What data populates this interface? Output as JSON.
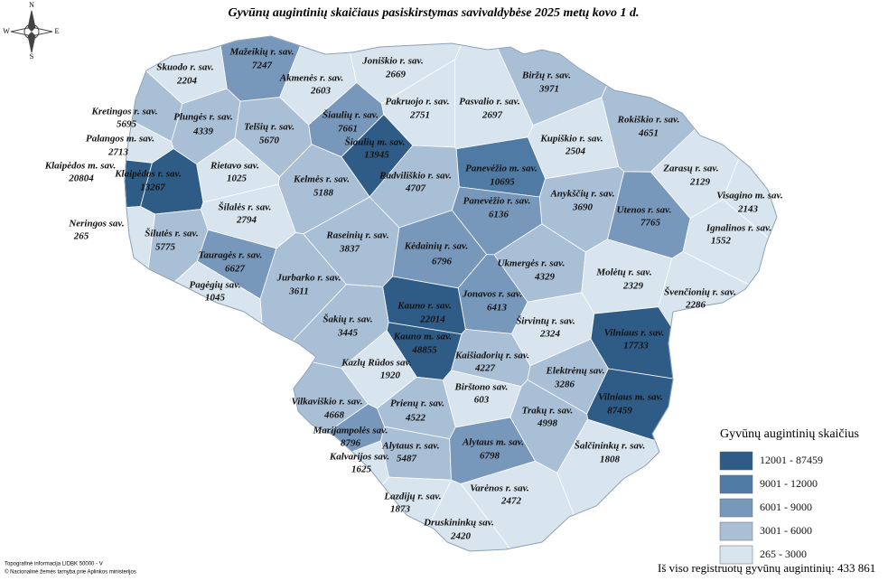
{
  "title": "Gyvūnų augintinių skaičiaus pasiskirstymas savivaldybėse 2025 metų kovo 1 d.",
  "compass": {
    "n": "N",
    "s": "S",
    "w": "W",
    "e": "E"
  },
  "regions": [
    {
      "name": "Mažeikių r. sav.",
      "value": 7247
    },
    {
      "name": "Skuodo r. sav.",
      "value": 2204
    },
    {
      "name": "Akmenės r. sav.",
      "value": 2603
    },
    {
      "name": "Joniškio r. sav.",
      "value": 2669
    },
    {
      "name": "Biržų r. sav.",
      "value": 3971
    },
    {
      "name": "Kretingos r. sav.",
      "value": 5695
    },
    {
      "name": "Plungės r. sav.",
      "value": 4339
    },
    {
      "name": "Telšių r. sav.",
      "value": 5670
    },
    {
      "name": "Šiaulių r. sav.",
      "value": 7661
    },
    {
      "name": "Pakruojo r. sav.",
      "value": 2751
    },
    {
      "name": "Pasvalio r. sav.",
      "value": 2697
    },
    {
      "name": "Rokiškio r. sav.",
      "value": 4651
    },
    {
      "name": "Palangos m. sav.",
      "value": 2713
    },
    {
      "name": "Šiaulių m. sav.",
      "value": 13945
    },
    {
      "name": "Kupiškio r. sav.",
      "value": 2504
    },
    {
      "name": "Klaipėdos m. sav.",
      "value": 20804
    },
    {
      "name": "Klaipėdos r. sav.",
      "value": 13267
    },
    {
      "name": "Rietavo sav.",
      "value": 1025
    },
    {
      "name": "Radviliškio r. sav.",
      "value": 4707
    },
    {
      "name": "Panevėžio m. sav.",
      "value": 10695
    },
    {
      "name": "Zarasų r. sav.",
      "value": 2129
    },
    {
      "name": "Kelmės r. sav.",
      "value": 5188
    },
    {
      "name": "Anykščių r. sav.",
      "value": 3690
    },
    {
      "name": "Visagino m. sav.",
      "value": 2143
    },
    {
      "name": "Panevėžio r. sav.",
      "value": 6136
    },
    {
      "name": "Šilalės r. sav.",
      "value": 2794
    },
    {
      "name": "Utenos r. sav.",
      "value": 7765
    },
    {
      "name": "Neringos sav.",
      "value": 265
    },
    {
      "name": "Ignalinos r. sav.",
      "value": 1552
    },
    {
      "name": "Šilutės r. sav.",
      "value": 5775
    },
    {
      "name": "Raseinių r. sav.",
      "value": 3837
    },
    {
      "name": "Kėdainių r. sav.",
      "value": 6796
    },
    {
      "name": "Tauragės r. sav.",
      "value": 6627
    },
    {
      "name": "Ukmergės r. sav.",
      "value": 4329
    },
    {
      "name": "Molėtų r. sav.",
      "value": 2329
    },
    {
      "name": "Pagėgių sav.",
      "value": 1045
    },
    {
      "name": "Jurbarko r. sav.",
      "value": 3611
    },
    {
      "name": "Jonavos r. sav.",
      "value": 6413
    },
    {
      "name": "Švenčionių r. sav.",
      "value": 2286
    },
    {
      "name": "Kauno r. sav.",
      "value": 22014
    },
    {
      "name": "Šakių r. sav.",
      "value": 3445
    },
    {
      "name": "Širvintų r. sav.",
      "value": 2324
    },
    {
      "name": "Vilniaus r. sav.",
      "value": 17733
    },
    {
      "name": "Kauno m. sav.",
      "value": 48855
    },
    {
      "name": "Kaišiadorių r. sav.",
      "value": 4227
    },
    {
      "name": "Kazlų Rūdos sav.",
      "value": 1920
    },
    {
      "name": "Elektrėnų sav.",
      "value": 3286
    },
    {
      "name": "Birštono sav.",
      "value": 603
    },
    {
      "name": "Vilniaus m. sav.",
      "value": 87459
    },
    {
      "name": "Vilkaviškio r. sav.",
      "value": 4668
    },
    {
      "name": "Prienų r. sav.",
      "value": 4522
    },
    {
      "name": "Trakų r. sav.",
      "value": 4998
    },
    {
      "name": "Marijampolės sav.",
      "value": 8796
    },
    {
      "name": "Alytaus r. sav.",
      "value": 5487
    },
    {
      "name": "Alytaus m. sav.",
      "value": 6798
    },
    {
      "name": "Šalčininkų r. sav.",
      "value": 1808
    },
    {
      "name": "Kalvarijos sav.",
      "value": 1625
    },
    {
      "name": "Varėnos r. sav.",
      "value": 2472
    },
    {
      "name": "Lazdijų r. sav.",
      "value": 1873
    },
    {
      "name": "Druskininkų sav.",
      "value": 2420
    }
  ],
  "legend": {
    "title": "Gyvūnų augintinių skaičius",
    "items": [
      {
        "label": "12001 - 87459",
        "min": 12001,
        "max": 87459,
        "color": "#2e5c87"
      },
      {
        "label": "9001 - 12000",
        "min": 9001,
        "max": 12000,
        "color": "#4f7aa3"
      },
      {
        "label": "6001 - 9000",
        "min": 6001,
        "max": 9000,
        "color": "#7898bb"
      },
      {
        "label": "3001 - 6000",
        "min": 3001,
        "max": 6000,
        "color": "#a9bfd6"
      },
      {
        "label": "265 - 3000",
        "min": 265,
        "max": 3000,
        "color": "#d8e5ee"
      }
    ]
  },
  "total": "Iš viso registruotų gyvūnų augintinių: 433 861",
  "credits": [
    "Topografinė informacija LIDBK 50000 - V",
    "© Nacionalinė žemės tarnyba prie Aplinkos ministerijos"
  ]
}
